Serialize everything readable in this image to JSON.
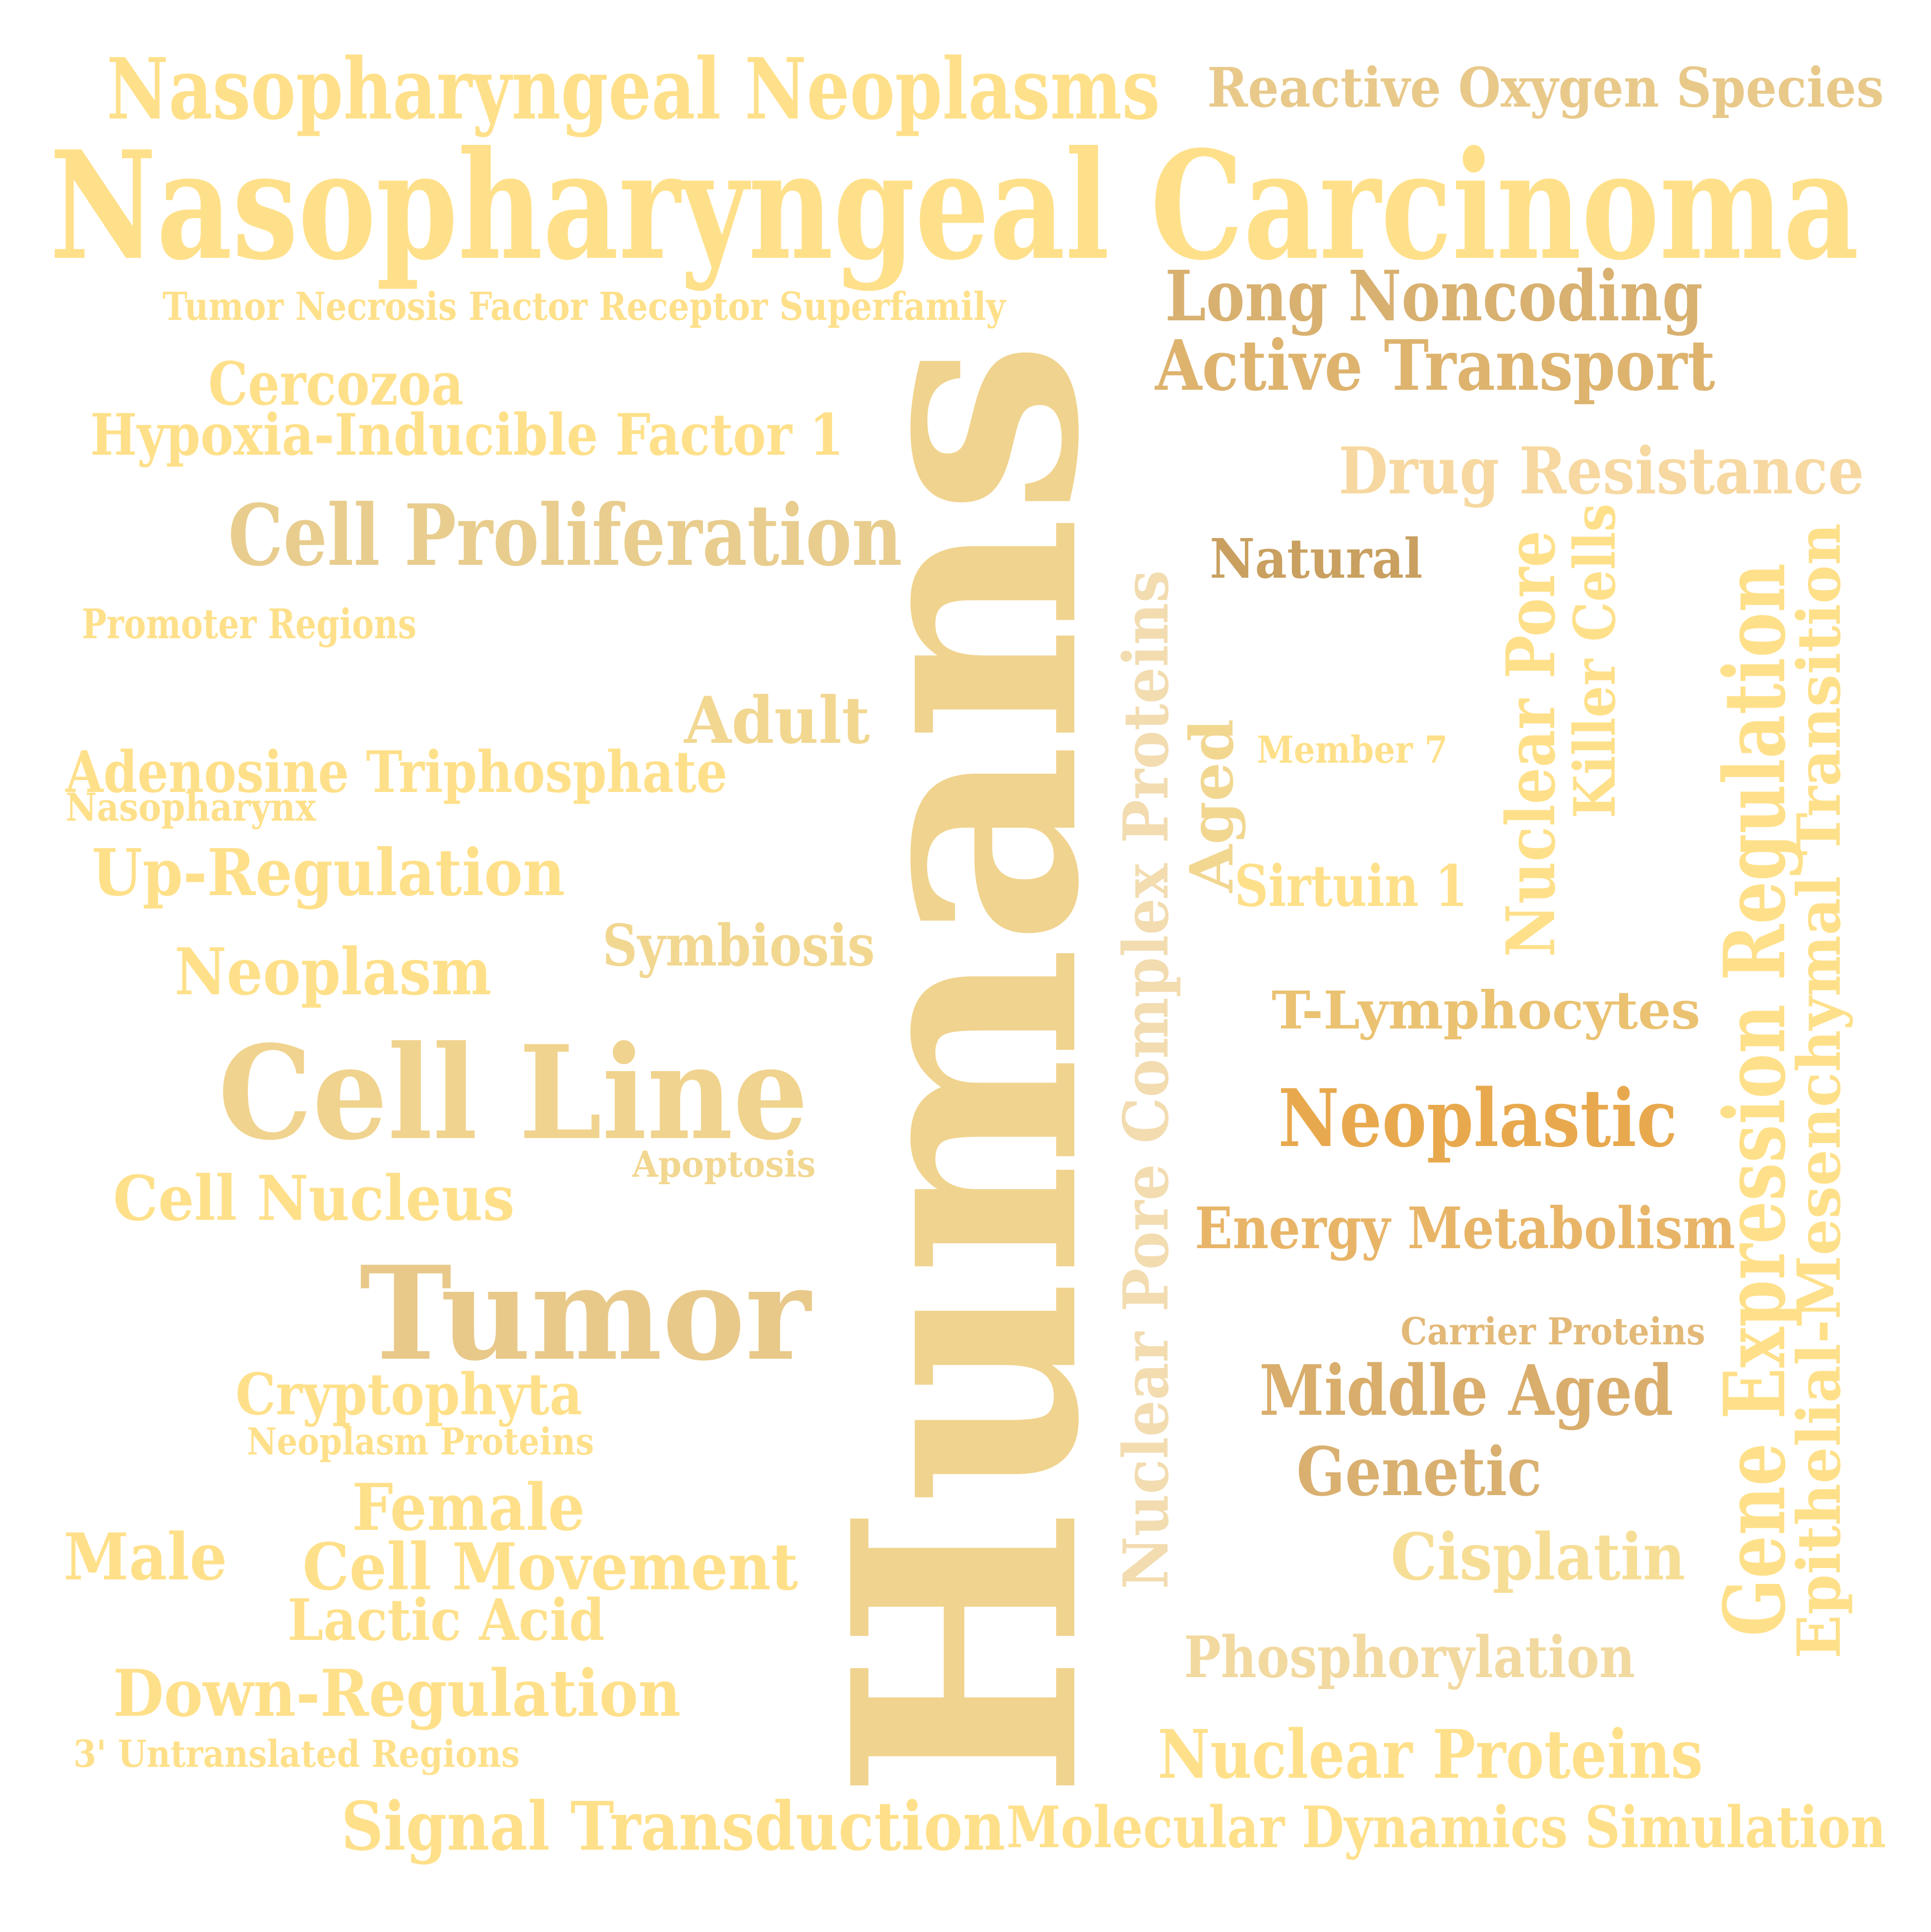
{
  "words": [
    {
      "id": "nasopharyngeal-carcinoma",
      "text": "Nasopharyngeal Carcinoma",
      "color": "#FFE08A"
    },
    {
      "id": "humans",
      "text": "Humans",
      "color": "#F0D38E"
    },
    {
      "id": "nasopharyngeal-neoplasms",
      "text": "Nasopharyngeal Neoplasms",
      "color": "#FFE08A"
    },
    {
      "id": "reactive-oxygen-species",
      "text": "Reactive Oxygen Species",
      "color": "#E8C98A"
    },
    {
      "id": "tumor-necrosis-factor-receptor-superfamily",
      "text": "Tumor Necrosis Factor Receptor Superfamily",
      "color": "#FFE08A"
    },
    {
      "id": "long-noncoding",
      "text": "Long Noncoding",
      "color": "#D8B070"
    },
    {
      "id": "active-transport",
      "text": "Active Transport",
      "color": "#DDB36E"
    },
    {
      "id": "cercozoa",
      "text": "Cercozoa",
      "color": "#FFE08A"
    },
    {
      "id": "hypoxia-inducible-factor-1",
      "text": "Hypoxia-Inducible Factor 1",
      "color": "#FFE08A"
    },
    {
      "id": "drug-resistance",
      "text": "Drug Resistance",
      "color": "#F6D8A0"
    },
    {
      "id": "cell-proliferation",
      "text": "Cell Proliferation",
      "color": "#E8CD8E"
    },
    {
      "id": "natural",
      "text": "Natural",
      "color": "#C9A060"
    },
    {
      "id": "promoter-regions",
      "text": "Promoter Regions",
      "color": "#FFE08A"
    },
    {
      "id": "adult",
      "text": "Adult",
      "color": "#F2D791"
    },
    {
      "id": "adenosine-triphosphate",
      "text": "Adenosine Triphosphate",
      "color": "#FFE08A"
    },
    {
      "id": "nasopharynx",
      "text": "Nasopharynx",
      "color": "#FFE08A"
    },
    {
      "id": "member-7",
      "text": "Member 7",
      "color": "#FFE08A"
    },
    {
      "id": "up-regulation",
      "text": "Up-Regulation",
      "color": "#FFE08A"
    },
    {
      "id": "sirtuin-1",
      "text": "Sirtuin 1",
      "color": "#FFE08A"
    },
    {
      "id": "symbiosis",
      "text": "Symbiosis",
      "color": "#F2D791"
    },
    {
      "id": "neoplasm",
      "text": "Neoplasm",
      "color": "#FFE08A"
    },
    {
      "id": "t-lymphocytes",
      "text": "T-Lymphocytes",
      "color": "#EAC271"
    },
    {
      "id": "cell-line",
      "text": "Cell Line",
      "color": "#F0D38E"
    },
    {
      "id": "neoplastic",
      "text": "Neoplastic",
      "color": "#E8A94E"
    },
    {
      "id": "apoptosis",
      "text": "Apoptosis",
      "color": "#F2D791"
    },
    {
      "id": "cell-nucleus",
      "text": "Cell Nucleus",
      "color": "#FFE08A"
    },
    {
      "id": "energy-metabolism",
      "text": "Energy Metabolism",
      "color": "#E8B568"
    },
    {
      "id": "tumor",
      "text": "Tumor",
      "color": "#E8C98A"
    },
    {
      "id": "carrier-proteins",
      "text": "Carrier Proteins",
      "color": "#E3B978"
    },
    {
      "id": "middle-aged",
      "text": "Middle Aged",
      "color": "#D9AD6C"
    },
    {
      "id": "cryptophyta",
      "text": "Cryptophyta",
      "color": "#FFE08A"
    },
    {
      "id": "neoplasm-proteins",
      "text": "Neoplasm Proteins",
      "color": "#FFE08A"
    },
    {
      "id": "genetic",
      "text": "Genetic",
      "color": "#D9B070"
    },
    {
      "id": "female",
      "text": "Female",
      "color": "#FFE08A"
    },
    {
      "id": "male",
      "text": "Male",
      "color": "#FFE08A"
    },
    {
      "id": "cell-movement",
      "text": "Cell Movement",
      "color": "#FFE08A"
    },
    {
      "id": "cisplatin",
      "text": "Cisplatin",
      "color": "#F7DE96"
    },
    {
      "id": "lactic-acid",
      "text": "Lactic Acid",
      "color": "#FFE08A"
    },
    {
      "id": "phosphorylation",
      "text": "Phosphorylation",
      "color": "#F2D9A0"
    },
    {
      "id": "down-regulation",
      "text": "Down-Regulation",
      "color": "#FFE08A"
    },
    {
      "id": "3-untranslated-regions",
      "text": "3' Untranslated Regions",
      "color": "#FFE08A"
    },
    {
      "id": "nuclear-proteins",
      "text": "Nuclear Proteins",
      "color": "#FFE08A"
    },
    {
      "id": "signal-transduction",
      "text": "Signal Transduction",
      "color": "#FFE08A"
    },
    {
      "id": "molecular-dynamics-simulation",
      "text": "Molecular Dynamics Simulation",
      "color": "#FFE08A"
    },
    {
      "id": "nuclear-pore-complex-proteins",
      "text": "Nuclear Pore Complex Proteins",
      "color": "#F2DCB0"
    },
    {
      "id": "aged",
      "text": "Aged",
      "color": "#F2D791"
    },
    {
      "id": "nuclear-pore",
      "text": "Nuclear Pore",
      "color": "#FFE08A"
    },
    {
      "id": "killer-cells",
      "text": "Killer Cells",
      "color": "#FFE08A"
    },
    {
      "id": "gene-expression-regulation",
      "text": "Gene Expression Regulation",
      "color": "#FFE08A"
    },
    {
      "id": "epithelial-mesenchymal-transition",
      "text": "Epithelial-Mesenchymal Transition",
      "color": "#FFE08A"
    }
  ]
}
